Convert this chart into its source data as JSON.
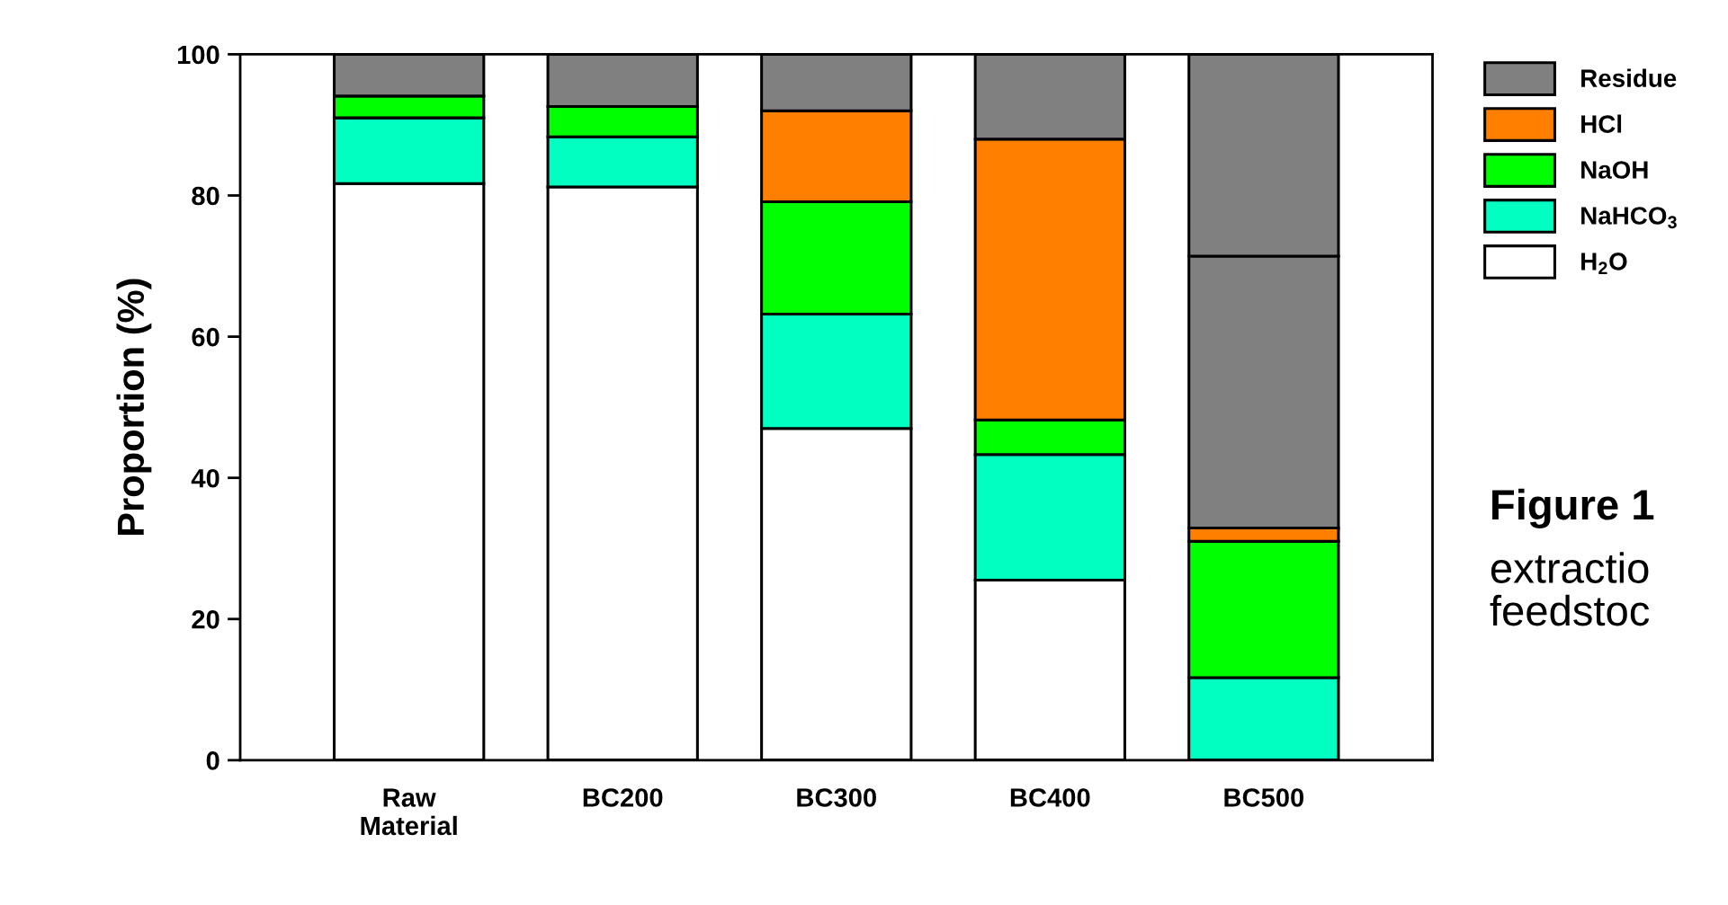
{
  "chart_data": {
    "type": "bar",
    "stacked": true,
    "ylabel": "Proportion (%)",
    "categories": [
      "Raw\nMaterial",
      "BC200",
      "BC300",
      "BC400",
      "BC500"
    ],
    "series": [
      {
        "name": "H$_{2}$O",
        "color": "#ffffff",
        "values": [
          81.7,
          81.2,
          47.0,
          25.5,
          0
        ]
      },
      {
        "name": "NaHCO$_{3}$",
        "color": "#00ffc0",
        "values": [
          9.3,
          7.1,
          16.2,
          17.8,
          11.7
        ]
      },
      {
        "name": "NaOH",
        "color": "#00ff00",
        "values": [
          3.1,
          4.3,
          15.9,
          4.9,
          19.3
        ]
      },
      {
        "name": "HCl",
        "color": "#ff8000",
        "values": [
          0,
          null,
          12.9,
          39.8,
          1.9
        ]
      },
      {
        "color": "#808080",
        "values": [
          0,
          0,
          0,
          0,
          38.5
        ]
      },
      {
        "name": "Residue",
        "color": "#808080",
        "values": [
          5.9,
          7.4,
          8.0,
          12.0,
          28.6
        ]
      }
    ],
    "ylim": [
      0,
      100
    ],
    "yticks": [
      0,
      20,
      40,
      60,
      80,
      100
    ],
    "grid": false,
    "legend": "top right",
    "annotations": [
      "Figure 1",
      "extractio\nfeedstoc"
    ]
  }
}
